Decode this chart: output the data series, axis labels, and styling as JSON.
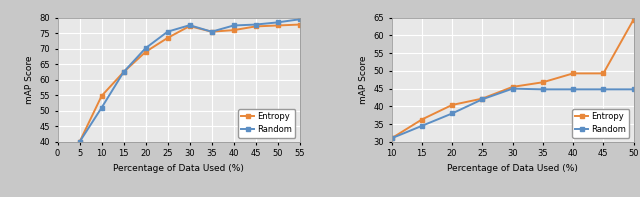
{
  "chart1": {
    "entropy_x": [
      5,
      10,
      15,
      20,
      25,
      30,
      35,
      40,
      45,
      50,
      55
    ],
    "entropy_y": [
      40.0,
      54.8,
      62.5,
      69.0,
      73.5,
      77.3,
      75.5,
      76.0,
      77.2,
      77.5,
      77.8
    ],
    "random_x": [
      5,
      10,
      15,
      20,
      25,
      30,
      35,
      40,
      45,
      50,
      55
    ],
    "random_y": [
      40.0,
      51.0,
      62.5,
      70.2,
      75.5,
      77.6,
      75.5,
      77.5,
      77.8,
      78.5,
      79.5
    ],
    "xlabel": "Percentage of Data Used (%)",
    "ylabel": "mAP Score",
    "xlim": [
      0,
      55
    ],
    "ylim": [
      40,
      80
    ],
    "yticks": [
      40,
      45,
      50,
      55,
      60,
      65,
      70,
      75,
      80
    ],
    "xticks": [
      0,
      5,
      10,
      15,
      20,
      25,
      30,
      35,
      40,
      45,
      50,
      55
    ]
  },
  "chart2": {
    "entropy_x": [
      10,
      15,
      20,
      25,
      30,
      35,
      40,
      45,
      50
    ],
    "entropy_y": [
      31.0,
      36.3,
      40.4,
      42.2,
      45.5,
      46.8,
      49.3,
      49.3,
      64.5
    ],
    "random_x": [
      10,
      15,
      20,
      25,
      30,
      35,
      40,
      45,
      50
    ],
    "random_y": [
      31.0,
      34.5,
      38.0,
      42.0,
      45.0,
      44.8,
      44.8,
      44.8,
      44.8
    ],
    "xlabel": "Percentage of Data Used (%)",
    "ylabel": "mAP Score",
    "xlim": [
      10,
      50
    ],
    "ylim": [
      30,
      65
    ],
    "yticks": [
      30,
      35,
      40,
      45,
      50,
      55,
      60,
      65
    ],
    "xticks": [
      10,
      15,
      20,
      25,
      30,
      35,
      40,
      45,
      50
    ]
  },
  "entropy_color": "#E8873A",
  "random_color": "#5B8EC4",
  "bg_color": "#E8E8E8",
  "fig_bg": "#C8C8C8",
  "marker": "s",
  "markersize": 3.5,
  "linewidth": 1.4,
  "grid_color": "#FFFFFF",
  "grid_lw": 0.8
}
